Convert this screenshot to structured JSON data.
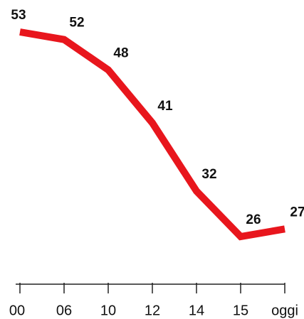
{
  "chart_data": {
    "type": "line",
    "categories": [
      "00",
      "06",
      "10",
      "12",
      "14",
      "15",
      "oggi"
    ],
    "series": [
      {
        "color": "#e8161d",
        "values": [
          53,
          52,
          48,
          41,
          32,
          26,
          27
        ]
      }
    ]
  }
}
